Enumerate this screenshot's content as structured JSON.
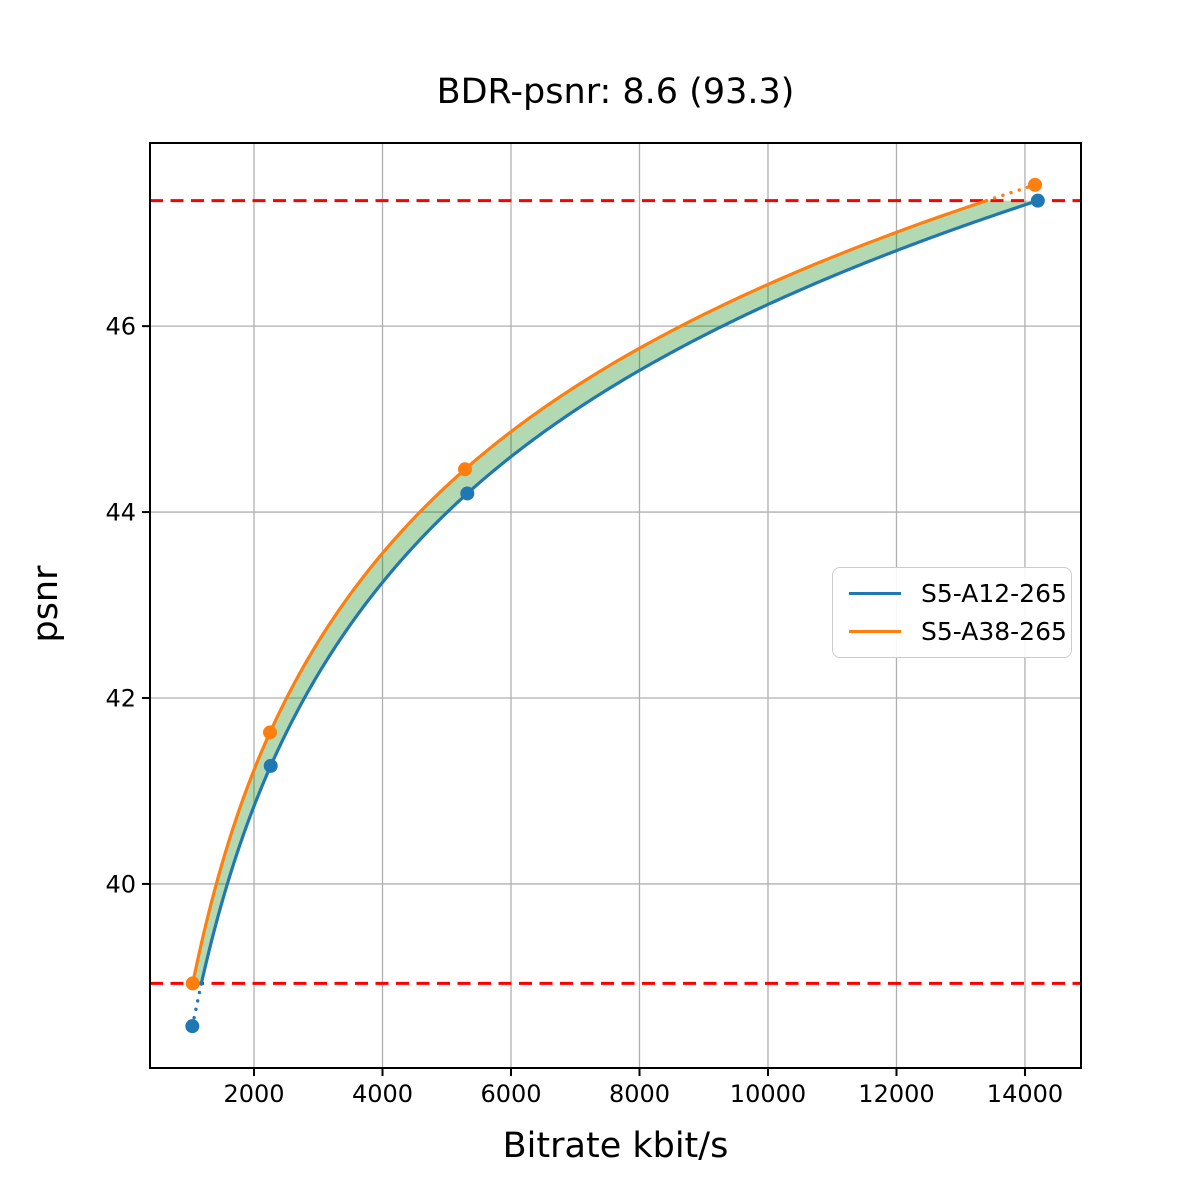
{
  "figure": {
    "background": "#ffffff"
  },
  "chart_data": {
    "type": "line",
    "title": "BDR-psnr: 8.6 (93.3)",
    "xlabel": "Bitrate kbit/s",
    "ylabel": "psnr",
    "xlim": [
      381,
      14872
    ],
    "ylim": [
      38.02,
      47.97
    ],
    "xticks": [
      2000,
      4000,
      6000,
      8000,
      10000,
      12000,
      14000
    ],
    "yticks": [
      40,
      42,
      44,
      46
    ],
    "grid": true,
    "grid_color": "#b0b0b0",
    "legend_position": "center-right",
    "series": [
      {
        "name": "S5-A12-265",
        "color": "#1f77b4",
        "points": [
          [
            1040,
            38.47
          ],
          [
            2260,
            41.27
          ],
          [
            5320,
            44.2
          ],
          [
            14200,
            47.35
          ]
        ]
      },
      {
        "name": "S5-A38-265",
        "color": "#ff7f0e",
        "points": [
          [
            1046,
            38.93
          ],
          [
            2249,
            41.63
          ],
          [
            5284,
            44.46
          ],
          [
            14156,
            47.52
          ]
        ]
      }
    ],
    "overlap_lines": {
      "color": "#ff0000",
      "style": "dashed",
      "lower": 38.93,
      "upper": 47.35
    },
    "fill_between": {
      "color": "#008000",
      "opacity": 0.3
    }
  }
}
